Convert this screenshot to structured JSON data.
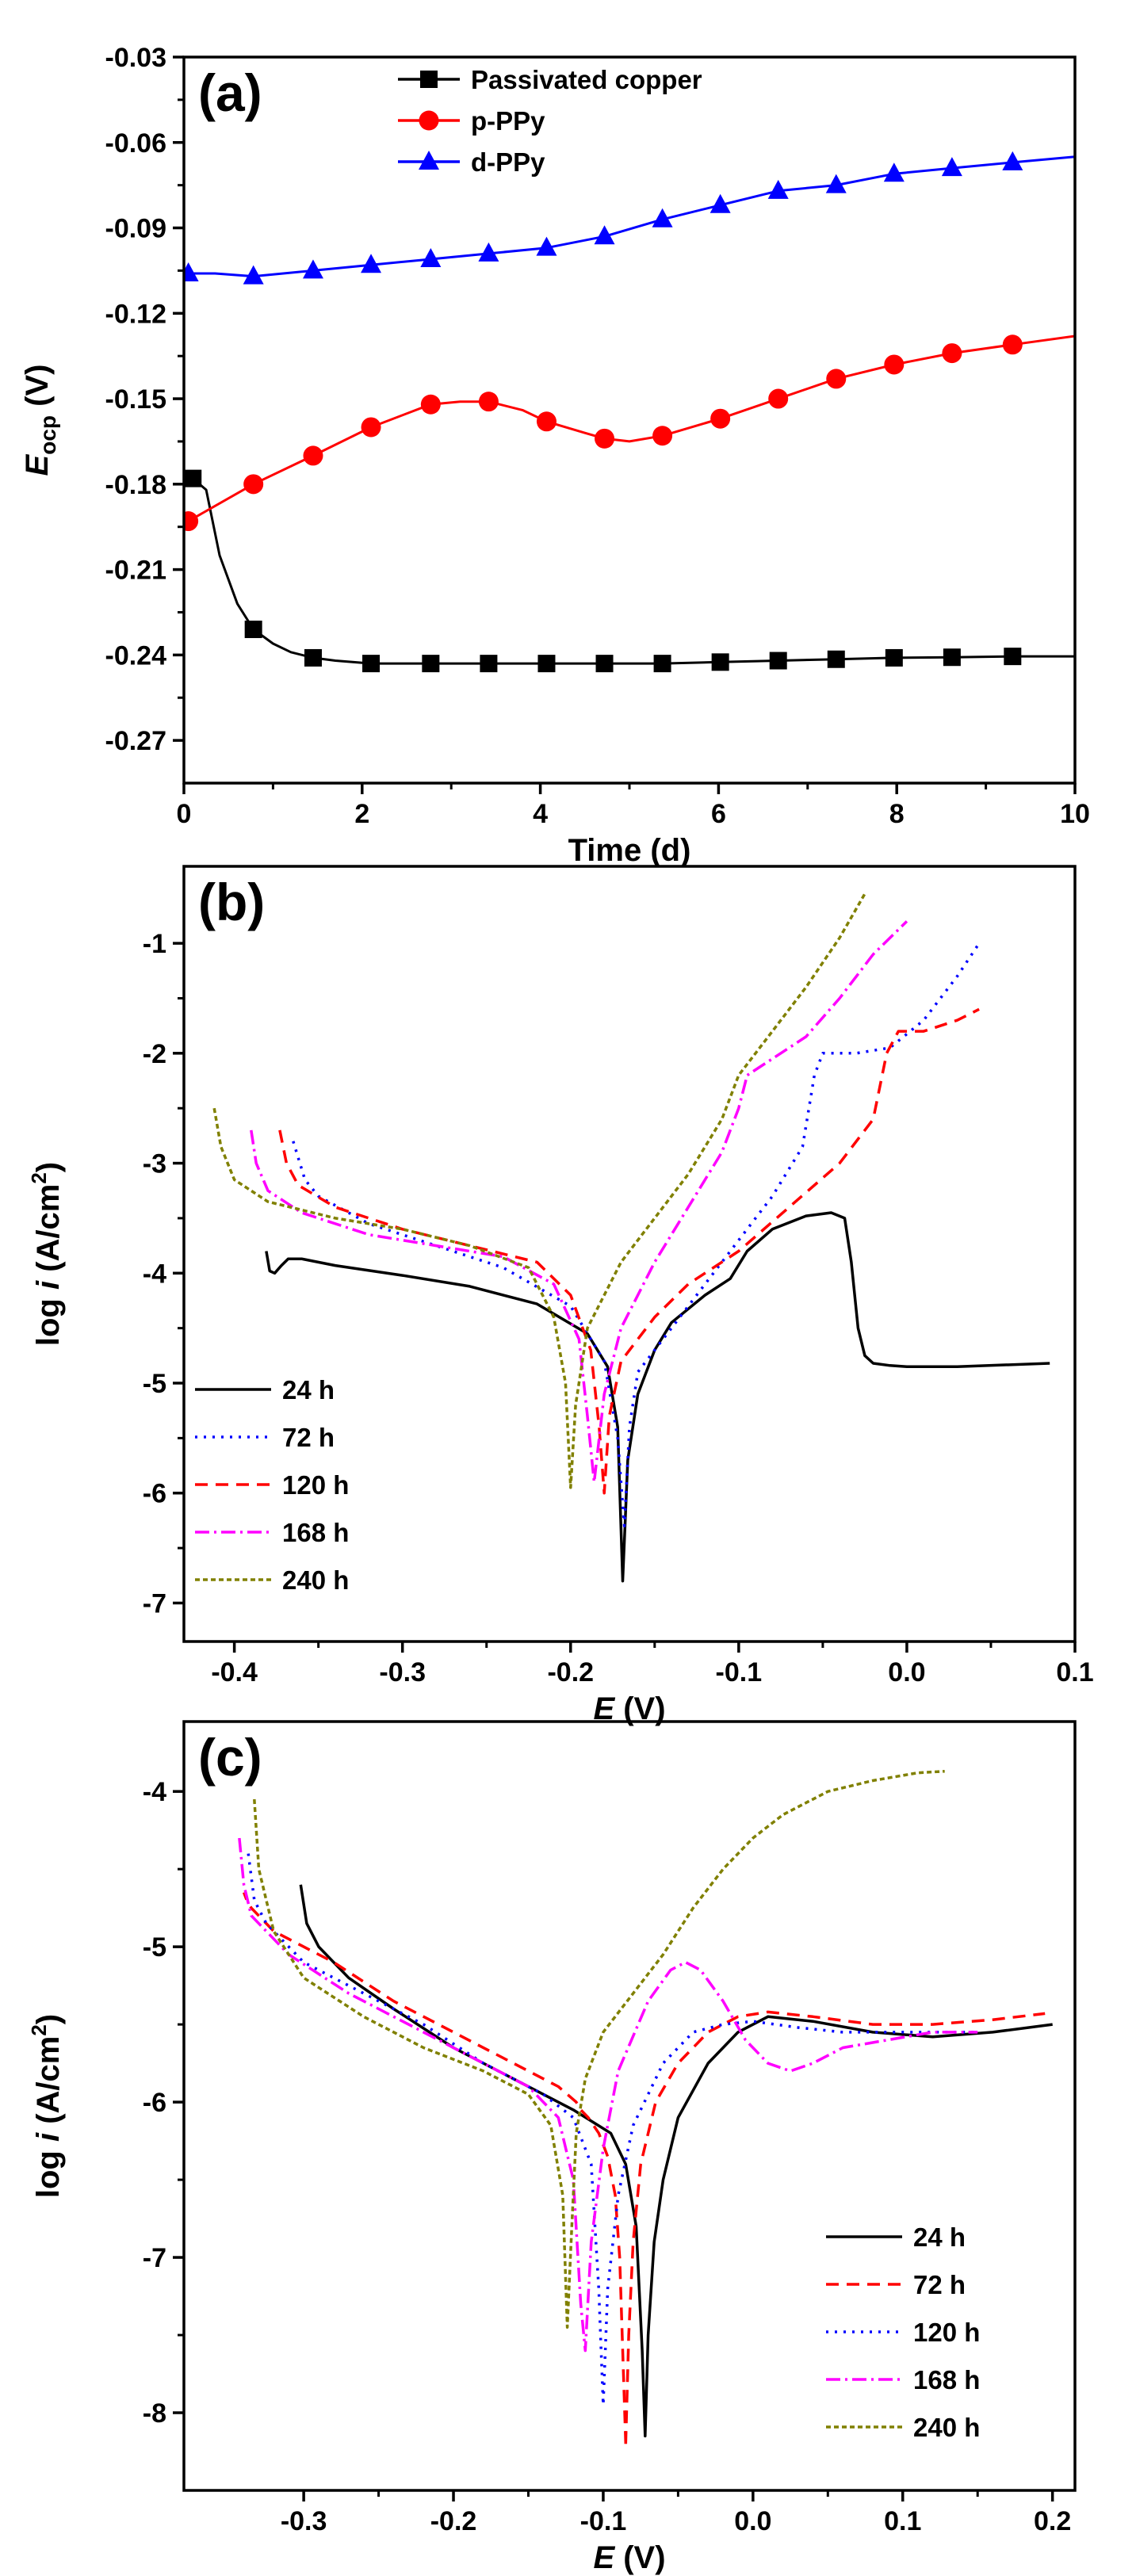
{
  "chart_data": [
    {
      "type": "line",
      "panel_label": "(a)",
      "xlabel": "Time (d)",
      "ylabel_main": "E",
      "ylabel_sub": "ocp",
      "ylabel_unit": " (V)",
      "xlim": [
        0,
        10
      ],
      "ylim": [
        -0.285,
        -0.03
      ],
      "xticks": [
        0,
        2,
        4,
        6,
        8,
        10
      ],
      "yticks": [
        -0.27,
        -0.24,
        -0.21,
        -0.18,
        -0.15,
        -0.12,
        -0.09,
        -0.06,
        -0.03
      ],
      "tick_decimals_x": 0,
      "tick_decimals_y": 2,
      "legend_position": "top-center",
      "series": [
        {
          "name": "Passivated copper",
          "color": "#000000",
          "marker": "square",
          "x": [
            0.1,
            0.25,
            0.4,
            0.6,
            0.78,
            1.0,
            1.2,
            1.45,
            1.7,
            2.1,
            2.5,
            2.77,
            3.42,
            4.07,
            4.72,
            5.37,
            6.02,
            6.67,
            7.32,
            7.97,
            8.62,
            9.3,
            10.0
          ],
          "y": [
            -0.178,
            -0.182,
            -0.205,
            -0.222,
            -0.231,
            -0.236,
            -0.239,
            -0.241,
            -0.242,
            -0.243,
            -0.243,
            -0.243,
            -0.243,
            -0.243,
            -0.243,
            -0.243,
            -0.2425,
            -0.242,
            -0.2415,
            -0.241,
            -0.2408,
            -0.2405,
            -0.2405
          ],
          "marker_x": [
            0.1,
            0.78,
            1.45,
            2.1,
            2.77,
            3.42,
            4.07,
            4.72,
            5.37,
            6.02,
            6.67,
            7.32,
            7.97,
            8.62,
            9.3
          ]
        },
        {
          "name": "p-PPy",
          "color": "#ff0000",
          "marker": "circle",
          "x": [
            0.05,
            0.78,
            1.45,
            2.1,
            2.77,
            3.1,
            3.42,
            3.8,
            4.07,
            4.5,
            4.72,
            5.0,
            5.37,
            6.02,
            6.67,
            7.32,
            7.97,
            8.62,
            9.3,
            10.0
          ],
          "y": [
            -0.193,
            -0.18,
            -0.17,
            -0.16,
            -0.152,
            -0.151,
            -0.151,
            -0.154,
            -0.158,
            -0.162,
            -0.164,
            -0.165,
            -0.163,
            -0.157,
            -0.15,
            -0.143,
            -0.138,
            -0.134,
            -0.131,
            -0.128
          ],
          "marker_x": [
            0.05,
            0.78,
            1.45,
            2.1,
            2.77,
            3.42,
            4.07,
            4.72,
            5.37,
            6.02,
            6.67,
            7.32,
            7.97,
            8.62,
            9.3
          ]
        },
        {
          "name": "d-PPy",
          "color": "#0000ff",
          "marker": "triangle",
          "x": [
            0.05,
            0.35,
            0.78,
            1.45,
            2.1,
            2.77,
            3.42,
            4.07,
            4.72,
            5.37,
            6.02,
            6.67,
            7.32,
            7.97,
            8.62,
            9.3,
            10.0
          ],
          "y": [
            -0.106,
            -0.106,
            -0.107,
            -0.105,
            -0.103,
            -0.101,
            -0.099,
            -0.097,
            -0.093,
            -0.087,
            -0.082,
            -0.077,
            -0.075,
            -0.071,
            -0.069,
            -0.067,
            -0.065
          ],
          "marker_x": [
            0.05,
            0.78,
            1.45,
            2.1,
            2.77,
            3.42,
            4.07,
            4.72,
            5.37,
            6.02,
            6.67,
            7.32,
            7.97,
            8.62,
            9.3
          ]
        }
      ]
    },
    {
      "type": "line",
      "panel_label": "(b)",
      "xlabel_main": "E",
      "xlabel_unit": " (V)",
      "ylabel_pre": "log ",
      "ylabel_main": "i",
      "ylabel_unit": " (A/cm",
      "ylabel_sup": "2",
      "ylabel_close": ")",
      "xlim": [
        -0.43,
        0.1
      ],
      "ylim": [
        -7.35,
        -0.3
      ],
      "xticks": [
        -0.4,
        -0.3,
        -0.2,
        -0.1,
        0.0,
        0.1
      ],
      "yticks": [
        -7,
        -6,
        -5,
        -4,
        -3,
        -2,
        -1
      ],
      "tick_decimals_x": 1,
      "tick_decimals_y": 0,
      "legend_position": "bottom-left",
      "series": [
        {
          "name": "24 h",
          "color": "#000000",
          "dash": "none",
          "x": [
            -0.381,
            -0.379,
            -0.376,
            -0.372,
            -0.368,
            -0.36,
            -0.34,
            -0.3,
            -0.26,
            -0.22,
            -0.19,
            -0.178,
            -0.172,
            -0.169,
            -0.166,
            -0.16,
            -0.15,
            -0.14,
            -0.12,
            -0.105,
            -0.095,
            -0.08,
            -0.06,
            -0.045,
            -0.037,
            -0.033,
            -0.029,
            -0.025,
            -0.02,
            -0.01,
            0.0,
            0.03,
            0.085
          ],
          "y": [
            -3.8,
            -3.98,
            -4.0,
            -3.93,
            -3.87,
            -3.87,
            -3.93,
            -4.02,
            -4.12,
            -4.28,
            -4.55,
            -4.85,
            -5.4,
            -6.8,
            -5.7,
            -5.1,
            -4.7,
            -4.45,
            -4.2,
            -4.05,
            -3.8,
            -3.6,
            -3.48,
            -3.45,
            -3.5,
            -3.9,
            -4.5,
            -4.75,
            -4.82,
            -4.84,
            -4.85,
            -4.85,
            -4.82
          ]
        },
        {
          "name": "72 h",
          "color": "#0000ff",
          "dash": "3,8",
          "x": [
            -0.365,
            -0.358,
            -0.35,
            -0.32,
            -0.28,
            -0.24,
            -0.2,
            -0.18,
            -0.172,
            -0.168,
            -0.165,
            -0.16,
            -0.14,
            -0.12,
            -0.1,
            -0.08,
            -0.062,
            -0.055,
            -0.05,
            -0.03,
            -0.01,
            0.01,
            0.03,
            0.043
          ],
          "y": [
            -2.8,
            -3.15,
            -3.3,
            -3.55,
            -3.75,
            -3.95,
            -4.3,
            -4.8,
            -5.5,
            -6.3,
            -5.4,
            -4.9,
            -4.5,
            -4.1,
            -3.7,
            -3.3,
            -2.85,
            -2.2,
            -2.0,
            -2.0,
            -1.95,
            -1.7,
            -1.3,
            -1.0
          ]
        },
        {
          "name": "120 h",
          "color": "#ff0000",
          "dash": "16,10",
          "x": [
            -0.373,
            -0.369,
            -0.362,
            -0.34,
            -0.3,
            -0.26,
            -0.22,
            -0.2,
            -0.188,
            -0.183,
            -0.18,
            -0.177,
            -0.17,
            -0.15,
            -0.13,
            -0.1,
            -0.07,
            -0.04,
            -0.02,
            -0.012,
            -0.005,
            0.01,
            0.03,
            0.043
          ],
          "y": [
            -2.7,
            -3.0,
            -3.2,
            -3.4,
            -3.6,
            -3.75,
            -3.9,
            -4.2,
            -4.7,
            -5.4,
            -6.0,
            -5.3,
            -4.8,
            -4.4,
            -4.1,
            -3.8,
            -3.4,
            -3.0,
            -2.6,
            -2.0,
            -1.8,
            -1.8,
            -1.7,
            -1.6
          ]
        },
        {
          "name": "168 h",
          "color": "#ff00ff",
          "dash": "18,6,3,6",
          "x": [
            -0.39,
            -0.387,
            -0.38,
            -0.36,
            -0.32,
            -0.28,
            -0.24,
            -0.21,
            -0.195,
            -0.19,
            -0.186,
            -0.18,
            -0.17,
            -0.15,
            -0.13,
            -0.11,
            -0.1,
            -0.095,
            -0.08,
            -0.06,
            -0.04,
            -0.02,
            0.0
          ],
          "y": [
            -2.7,
            -3.0,
            -3.25,
            -3.45,
            -3.65,
            -3.75,
            -3.85,
            -4.1,
            -4.6,
            -5.3,
            -5.9,
            -5.1,
            -4.5,
            -3.9,
            -3.4,
            -2.9,
            -2.5,
            -2.2,
            -2.05,
            -1.85,
            -1.5,
            -1.1,
            -0.8
          ]
        },
        {
          "name": "240 h",
          "color": "#808000",
          "dash": "6,4",
          "x": [
            -0.412,
            -0.408,
            -0.4,
            -0.38,
            -0.34,
            -0.3,
            -0.26,
            -0.225,
            -0.21,
            -0.203,
            -0.2,
            -0.197,
            -0.19,
            -0.17,
            -0.15,
            -0.13,
            -0.11,
            -0.1,
            -0.08,
            -0.06,
            -0.04,
            -0.025
          ],
          "y": [
            -2.5,
            -2.85,
            -3.15,
            -3.35,
            -3.5,
            -3.6,
            -3.75,
            -3.95,
            -4.4,
            -5.0,
            -5.95,
            -5.2,
            -4.5,
            -3.9,
            -3.5,
            -3.1,
            -2.6,
            -2.2,
            -1.8,
            -1.4,
            -0.95,
            -0.55
          ]
        }
      ]
    },
    {
      "type": "line",
      "panel_label": "(c)",
      "xlabel_main": "E",
      "xlabel_unit": " (V)",
      "ylabel_pre": "log ",
      "ylabel_main": "i",
      "ylabel_unit": " (A/cm",
      "ylabel_sup": "2",
      "ylabel_close": ")",
      "xlim": [
        -0.38,
        0.215
      ],
      "ylim": [
        -8.5,
        -3.55
      ],
      "xticks": [
        -0.3,
        -0.2,
        -0.1,
        0.0,
        0.1,
        0.2
      ],
      "yticks": [
        -8,
        -7,
        -6,
        -5,
        -4
      ],
      "tick_decimals_x": 1,
      "tick_decimals_y": 0,
      "legend_position": "bottom-right",
      "series": [
        {
          "name": "24 h",
          "color": "#000000",
          "dash": "none",
          "x": [
            -0.302,
            -0.298,
            -0.29,
            -0.27,
            -0.24,
            -0.2,
            -0.16,
            -0.12,
            -0.095,
            -0.085,
            -0.078,
            -0.074,
            -0.072,
            -0.07,
            -0.066,
            -0.06,
            -0.05,
            -0.03,
            -0.01,
            0.01,
            0.04,
            0.08,
            0.12,
            0.16,
            0.2
          ],
          "y": [
            -4.6,
            -4.85,
            -5.0,
            -5.2,
            -5.4,
            -5.65,
            -5.85,
            -6.05,
            -6.2,
            -6.4,
            -6.8,
            -7.6,
            -8.15,
            -7.5,
            -6.9,
            -6.5,
            -6.1,
            -5.75,
            -5.55,
            -5.45,
            -5.48,
            -5.55,
            -5.58,
            -5.55,
            -5.5
          ]
        },
        {
          "name": "72 h",
          "color": "#ff0000",
          "dash": "16,10",
          "x": [
            -0.085,
            -0.087,
            -0.089,
            -0.092,
            -0.097,
            -0.103,
            -0.11,
            -0.115,
            -0.118,
            -0.124,
            -0.13,
            -0.16,
            -0.2,
            -0.24,
            -0.28,
            -0.32,
            -0.335,
            -0.338,
            -0.34
          ],
          "y": [
            -8.2,
            -7.6,
            -7.0,
            -6.6,
            -6.35,
            -6.2,
            -6.1,
            -6.05,
            -6.0,
            -5.95,
            -5.9,
            -5.75,
            -5.55,
            -5.35,
            -5.1,
            -4.9,
            -4.75,
            -4.7,
            -4.65
          ],
          "x2": [
            -0.085,
            -0.083,
            -0.08,
            -0.075,
            -0.065,
            -0.05,
            -0.03,
            -0.01,
            0.01,
            0.04,
            0.08,
            0.12,
            0.16,
            0.195
          ],
          "y2": [
            -8.2,
            -7.5,
            -6.9,
            -6.4,
            -6.0,
            -5.75,
            -5.55,
            -5.45,
            -5.42,
            -5.45,
            -5.5,
            -5.5,
            -5.47,
            -5.43
          ]
        },
        {
          "name": "120 h",
          "color": "#0000ff",
          "dash": "3,8",
          "x": [
            -0.337,
            -0.333,
            -0.325,
            -0.3,
            -0.26,
            -0.22,
            -0.18,
            -0.14,
            -0.12,
            -0.108,
            -0.103,
            -0.1,
            -0.097,
            -0.09,
            -0.08,
            -0.06,
            -0.04,
            -0.02,
            0.0,
            0.03,
            0.06,
            0.1,
            0.15
          ],
          "y": [
            -4.4,
            -4.7,
            -4.85,
            -5.1,
            -5.3,
            -5.5,
            -5.75,
            -5.95,
            -6.1,
            -6.4,
            -7.2,
            -7.95,
            -7.2,
            -6.6,
            -6.15,
            -5.75,
            -5.55,
            -5.5,
            -5.48,
            -5.52,
            -5.55,
            -5.55,
            -5.55
          ]
        },
        {
          "name": "168 h",
          "color": "#ff00ff",
          "dash": "18,6,3,6",
          "x": [
            -0.343,
            -0.34,
            -0.335,
            -0.31,
            -0.27,
            -0.23,
            -0.19,
            -0.15,
            -0.13,
            -0.12,
            -0.115,
            -0.112,
            -0.108,
            -0.1,
            -0.09,
            -0.07,
            -0.055,
            -0.045,
            -0.035,
            -0.02,
            -0.005,
            0.01,
            0.025,
            0.04,
            0.06,
            0.09,
            0.12,
            0.15
          ],
          "y": [
            -4.3,
            -4.6,
            -4.8,
            -5.05,
            -5.3,
            -5.5,
            -5.7,
            -5.9,
            -6.1,
            -6.5,
            -7.3,
            -7.6,
            -6.9,
            -6.3,
            -5.8,
            -5.35,
            -5.15,
            -5.1,
            -5.15,
            -5.35,
            -5.6,
            -5.75,
            -5.8,
            -5.75,
            -5.65,
            -5.6,
            -5.55,
            -5.55
          ]
        },
        {
          "name": "240 h",
          "color": "#808000",
          "dash": "6,4",
          "x": [
            -0.333,
            -0.33,
            -0.32,
            -0.3,
            -0.26,
            -0.22,
            -0.18,
            -0.15,
            -0.135,
            -0.127,
            -0.124,
            -0.121,
            -0.118,
            -0.112,
            -0.1,
            -0.08,
            -0.06,
            -0.04,
            -0.02,
            0.0,
            0.02,
            0.05,
            0.08,
            0.11,
            0.128
          ],
          "y": [
            -4.05,
            -4.5,
            -4.9,
            -5.2,
            -5.45,
            -5.65,
            -5.8,
            -5.95,
            -6.15,
            -6.6,
            -7.45,
            -6.8,
            -6.2,
            -5.85,
            -5.55,
            -5.3,
            -5.05,
            -4.75,
            -4.5,
            -4.3,
            -4.15,
            -4.0,
            -3.93,
            -3.88,
            -3.87
          ]
        }
      ]
    }
  ]
}
